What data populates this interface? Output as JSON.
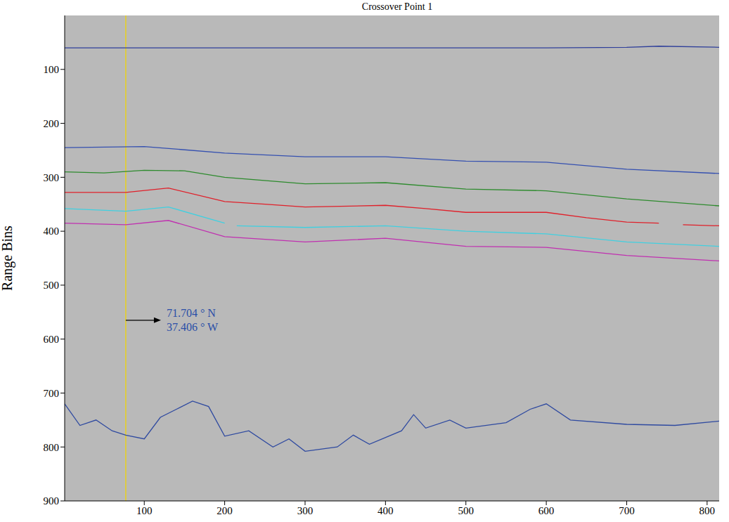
{
  "chart_data": {
    "type": "line",
    "title": "Crossover Point 1",
    "y_label": "Range Bins",
    "xlim": [
      1,
      815
    ],
    "ylim": [
      0,
      900
    ],
    "xticks": [
      100,
      200,
      300,
      400,
      500,
      600,
      700,
      800
    ],
    "yticks": [
      100,
      200,
      300,
      400,
      500,
      600,
      700,
      800,
      900
    ],
    "grid": false,
    "series": [
      {
        "color": "#2f3f9a",
        "x": [
          1,
          100,
          200,
          300,
          400,
          500,
          600,
          700,
          740,
          815
        ],
        "values": [
          60,
          60,
          60,
          60,
          60,
          60,
          60,
          59,
          57,
          59
        ]
      },
      {
        "color": "#3550b0",
        "x": [
          1,
          100,
          200,
          300,
          400,
          500,
          600,
          700,
          815
        ],
        "values": [
          245,
          243,
          255,
          262,
          262,
          270,
          272,
          285,
          293
        ]
      },
      {
        "color": "#2e8b2e",
        "x": [
          1,
          50,
          100,
          150,
          200,
          300,
          400,
          500,
          600,
          700,
          815
        ],
        "values": [
          290,
          292,
          287,
          288,
          300,
          312,
          310,
          322,
          325,
          340,
          353
        ]
      },
      {
        "color": "#e0202a",
        "x": [
          1,
          77,
          130,
          200,
          250,
          300,
          400,
          450,
          500,
          600,
          650,
          700,
          740,
          755,
          770,
          815
        ],
        "values": [
          328,
          328,
          320,
          345,
          350,
          355,
          352,
          358,
          365,
          365,
          375,
          383,
          385,
          null,
          388,
          390
        ]
      },
      {
        "color": "#40d0e0",
        "x": [
          1,
          77,
          130,
          200,
          207,
          215,
          300,
          400,
          500,
          600,
          700,
          815
        ],
        "values": [
          358,
          363,
          355,
          385,
          null,
          390,
          393,
          390,
          400,
          405,
          420,
          428
        ]
      },
      {
        "color": "#c030b0",
        "x": [
          1,
          77,
          130,
          200,
          300,
          400,
          500,
          600,
          700,
          815
        ],
        "values": [
          385,
          388,
          380,
          410,
          420,
          413,
          428,
          430,
          445,
          455
        ]
      },
      {
        "color": "#2f4aa0",
        "x": [
          1,
          20,
          40,
          60,
          77,
          100,
          120,
          140,
          160,
          180,
          200,
          230,
          260,
          280,
          300,
          340,
          360,
          380,
          420,
          435,
          450,
          480,
          500,
          550,
          580,
          600,
          630,
          700,
          760,
          815
        ],
        "values": [
          720,
          760,
          750,
          770,
          778,
          785,
          745,
          730,
          715,
          725,
          780,
          770,
          800,
          785,
          808,
          800,
          778,
          795,
          770,
          740,
          765,
          750,
          765,
          755,
          730,
          720,
          750,
          758,
          760,
          752
        ]
      }
    ],
    "annotations": [
      {
        "x": 77,
        "y": 565,
        "lines": [
          "71.704 ° N",
          "37.406 ° W"
        ],
        "color": "#2b4fa8"
      }
    ]
  }
}
